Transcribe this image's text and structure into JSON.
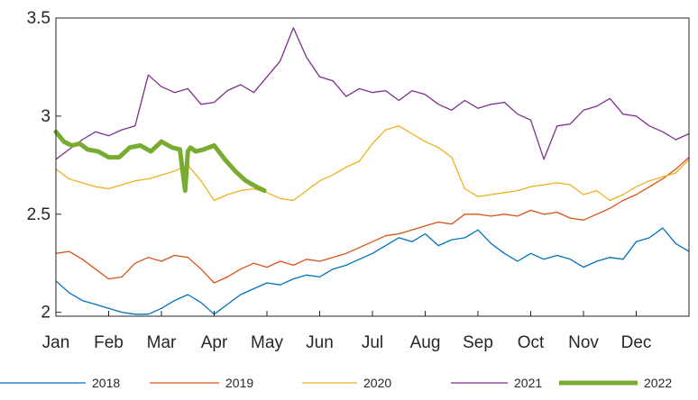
{
  "chart_data": {
    "type": "line",
    "title": "",
    "xlabel": "",
    "ylabel": "",
    "x_categories": [
      "Jan",
      "Feb",
      "Mar",
      "Apr",
      "May",
      "Jun",
      "Jul",
      "Aug",
      "Sep",
      "Oct",
      "Nov",
      "Dec"
    ],
    "x_range": [
      0,
      12
    ],
    "ylim": [
      1.98,
      3.5
    ],
    "yticks": [
      2,
      2.5,
      3,
      3.5
    ],
    "ytick_labels": [
      "2",
      "2.5",
      "3",
      "3.5"
    ],
    "grid": false,
    "legend_position": "bottom",
    "series": [
      {
        "name": "2018",
        "color": "#0072BD",
        "x": [
          0,
          0.25,
          0.5,
          0.75,
          1.0,
          1.25,
          1.5,
          1.75,
          2.0,
          2.25,
          2.5,
          2.75,
          3.0,
          3.25,
          3.5,
          3.75,
          4.0,
          4.25,
          4.5,
          4.75,
          5.0,
          5.25,
          5.5,
          5.75,
          6.0,
          6.25,
          6.5,
          6.75,
          7.0,
          7.25,
          7.5,
          7.75,
          8.0,
          8.25,
          8.5,
          8.75,
          9.0,
          9.25,
          9.5,
          9.75,
          10.0,
          10.25,
          10.5,
          10.75,
          11.0,
          11.25,
          11.5,
          11.75,
          12.0
        ],
        "y": [
          2.16,
          2.1,
          2.06,
          2.04,
          2.02,
          2.0,
          1.99,
          1.99,
          2.02,
          2.06,
          2.09,
          2.05,
          1.99,
          2.04,
          2.09,
          2.12,
          2.15,
          2.14,
          2.17,
          2.19,
          2.18,
          2.22,
          2.24,
          2.27,
          2.3,
          2.34,
          2.38,
          2.36,
          2.4,
          2.34,
          2.37,
          2.38,
          2.42,
          2.35,
          2.3,
          2.26,
          2.3,
          2.27,
          2.29,
          2.27,
          2.23,
          2.26,
          2.28,
          2.27,
          2.36,
          2.38,
          2.43,
          2.35,
          2.31
        ]
      },
      {
        "name": "2019",
        "color": "#D95319",
        "x": [
          0,
          0.25,
          0.5,
          0.75,
          1.0,
          1.25,
          1.5,
          1.75,
          2.0,
          2.25,
          2.5,
          2.75,
          3.0,
          3.25,
          3.5,
          3.75,
          4.0,
          4.25,
          4.5,
          4.75,
          5.0,
          5.25,
          5.5,
          5.75,
          6.0,
          6.25,
          6.5,
          6.75,
          7.0,
          7.25,
          7.5,
          7.75,
          8.0,
          8.25,
          8.5,
          8.75,
          9.0,
          9.25,
          9.5,
          9.75,
          10.0,
          10.25,
          10.5,
          10.75,
          11.0,
          11.25,
          11.5,
          11.75,
          12.0
        ],
        "y": [
          2.3,
          2.31,
          2.27,
          2.22,
          2.17,
          2.18,
          2.25,
          2.28,
          2.26,
          2.29,
          2.28,
          2.22,
          2.15,
          2.18,
          2.22,
          2.25,
          2.23,
          2.26,
          2.24,
          2.27,
          2.26,
          2.28,
          2.3,
          2.33,
          2.36,
          2.39,
          2.4,
          2.42,
          2.44,
          2.46,
          2.45,
          2.5,
          2.5,
          2.49,
          2.5,
          2.49,
          2.52,
          2.5,
          2.51,
          2.48,
          2.47,
          2.5,
          2.53,
          2.57,
          2.6,
          2.64,
          2.68,
          2.73,
          2.79
        ]
      },
      {
        "name": "2020",
        "color": "#EDB120",
        "x": [
          0,
          0.25,
          0.5,
          0.75,
          1.0,
          1.25,
          1.5,
          1.75,
          2.0,
          2.25,
          2.5,
          2.75,
          3.0,
          3.25,
          3.5,
          3.75,
          4.0,
          4.25,
          4.5,
          4.75,
          5.0,
          5.25,
          5.5,
          5.75,
          6.0,
          6.25,
          6.5,
          6.75,
          7.0,
          7.25,
          7.5,
          7.75,
          8.0,
          8.25,
          8.5,
          8.75,
          9.0,
          9.25,
          9.5,
          9.75,
          10.0,
          10.25,
          10.5,
          10.75,
          11.0,
          11.25,
          11.5,
          11.75,
          12.0
        ],
        "y": [
          2.73,
          2.68,
          2.66,
          2.64,
          2.63,
          2.65,
          2.67,
          2.68,
          2.7,
          2.72,
          2.75,
          2.67,
          2.57,
          2.6,
          2.62,
          2.63,
          2.61,
          2.58,
          2.57,
          2.62,
          2.67,
          2.7,
          2.74,
          2.77,
          2.86,
          2.93,
          2.95,
          2.91,
          2.87,
          2.84,
          2.79,
          2.63,
          2.59,
          2.6,
          2.61,
          2.62,
          2.64,
          2.65,
          2.66,
          2.65,
          2.6,
          2.62,
          2.57,
          2.6,
          2.64,
          2.67,
          2.69,
          2.71,
          2.78
        ]
      },
      {
        "name": "2021",
        "color": "#7E2F8E",
        "x": [
          0,
          0.25,
          0.5,
          0.75,
          1.0,
          1.25,
          1.5,
          1.75,
          2.0,
          2.25,
          2.5,
          2.75,
          3.0,
          3.25,
          3.5,
          3.75,
          4.0,
          4.25,
          4.5,
          4.75,
          5.0,
          5.25,
          5.5,
          5.75,
          6.0,
          6.25,
          6.5,
          6.75,
          7.0,
          7.25,
          7.5,
          7.75,
          8.0,
          8.25,
          8.5,
          8.75,
          9.0,
          9.25,
          9.5,
          9.75,
          10.0,
          10.25,
          10.5,
          10.75,
          11.0,
          11.25,
          11.5,
          11.75,
          12.0
        ],
        "y": [
          2.78,
          2.83,
          2.88,
          2.92,
          2.9,
          2.93,
          2.95,
          3.21,
          3.15,
          3.12,
          3.14,
          3.06,
          3.07,
          3.13,
          3.16,
          3.12,
          3.2,
          3.28,
          3.45,
          3.3,
          3.2,
          3.18,
          3.1,
          3.14,
          3.12,
          3.13,
          3.08,
          3.13,
          3.11,
          3.06,
          3.03,
          3.08,
          3.04,
          3.06,
          3.07,
          3.01,
          2.98,
          2.78,
          2.95,
          2.96,
          3.03,
          3.05,
          3.09,
          3.01,
          3.0,
          2.95,
          2.92,
          2.88,
          2.91
        ]
      },
      {
        "name": "2022",
        "color": "#77AC30",
        "x": [
          0,
          0.15,
          0.3,
          0.45,
          0.6,
          0.8,
          1.0,
          1.2,
          1.4,
          1.6,
          1.8,
          2.0,
          2.2,
          2.35,
          2.45,
          2.5,
          2.55,
          2.65,
          2.8,
          3.0,
          3.2,
          3.4,
          3.6,
          3.8,
          3.95
        ],
        "y": [
          2.92,
          2.87,
          2.85,
          2.86,
          2.83,
          2.82,
          2.79,
          2.79,
          2.84,
          2.85,
          2.82,
          2.87,
          2.84,
          2.83,
          2.62,
          2.82,
          2.84,
          2.82,
          2.83,
          2.85,
          2.78,
          2.72,
          2.67,
          2.64,
          2.62
        ]
      }
    ]
  }
}
